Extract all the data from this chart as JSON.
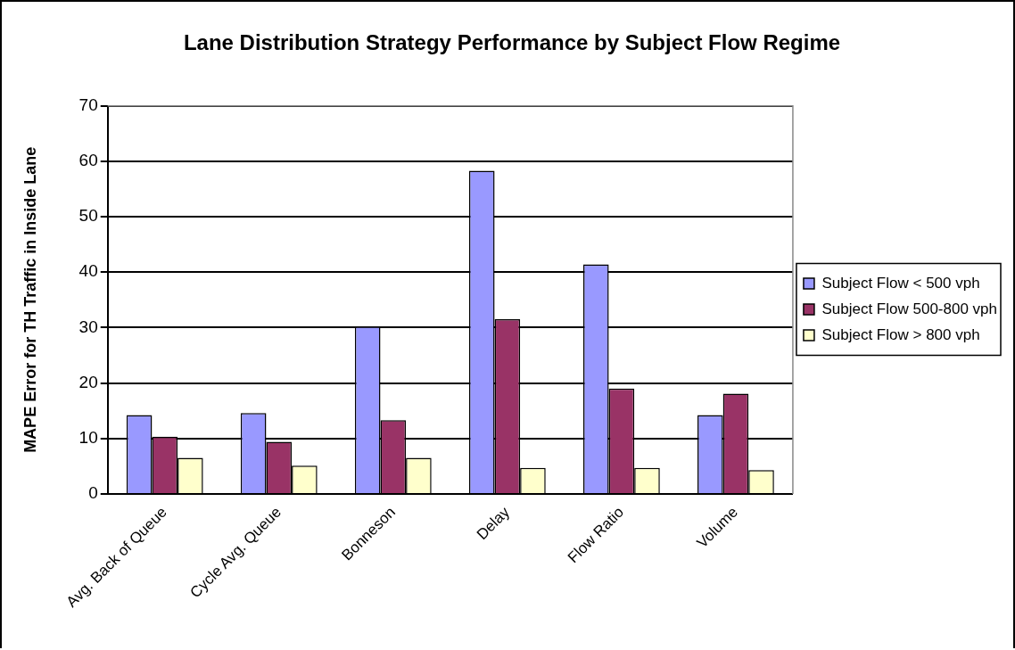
{
  "chart_data": {
    "type": "bar",
    "title": "Lane Distribution Strategy Performance by Subject Flow Regime",
    "ylabel": "MAPE Error for TH Traffic in Inside Lane",
    "categories": [
      "Avg. Back of Queue",
      "Cycle Avg. Queue",
      "Bonneson",
      "Delay",
      "Flow Ratio",
      "Volume"
    ],
    "series": [
      {
        "name": "Subject Flow < 500 vph",
        "color": "#9999ff",
        "values": [
          14.2,
          14.6,
          30.2,
          58.3,
          41.4,
          14.2
        ]
      },
      {
        "name": "Subject Flow 500-800 vph",
        "color": "#993366",
        "values": [
          10.3,
          9.4,
          13.3,
          31.5,
          19.0,
          18.1
        ]
      },
      {
        "name": "Subject Flow > 800 vph",
        "color": "#ffffcc",
        "values": [
          6.5,
          5.1,
          6.5,
          4.7,
          4.7,
          4.3
        ]
      }
    ],
    "ylim": [
      0,
      70
    ],
    "yticks": [
      0,
      10,
      20,
      30,
      40,
      50,
      60,
      70
    ],
    "grid": "y",
    "legend": "right"
  }
}
